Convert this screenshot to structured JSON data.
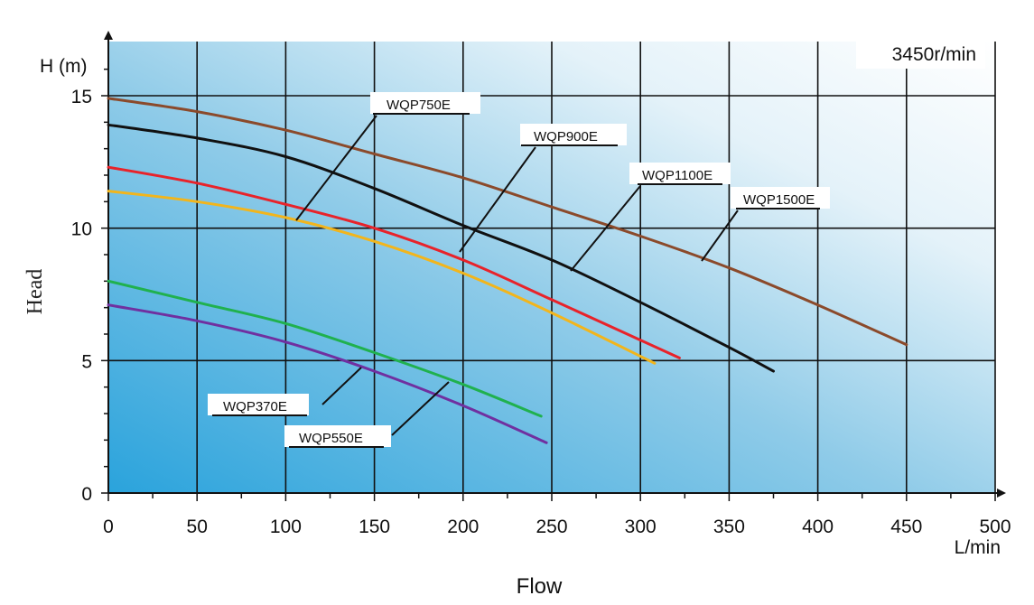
{
  "chart_data": {
    "type": "line",
    "annotation": "3450r/min",
    "xlabel": "Flow",
    "ylabel": "Head",
    "x_unit": "L/min",
    "y_unit": "H (m)",
    "xlim": [
      0,
      500
    ],
    "ylim": [
      0,
      17
    ],
    "x_ticks": [
      0,
      50,
      100,
      150,
      200,
      250,
      300,
      350,
      400,
      450,
      500
    ],
    "y_ticks": [
      0,
      5,
      10,
      15
    ],
    "grid": true,
    "series": [
      {
        "name": "WQP370E",
        "color": "#20b14e",
        "x": [
          0,
          50,
          100,
          150,
          200,
          244
        ],
        "y": [
          8.0,
          7.2,
          6.4,
          5.3,
          4.1,
          2.9
        ]
      },
      {
        "name": "WQP550E",
        "color": "#7030a0",
        "x": [
          0,
          50,
          100,
          150,
          200,
          247
        ],
        "y": [
          7.1,
          6.5,
          5.7,
          4.6,
          3.3,
          1.9
        ]
      },
      {
        "name": "WQP750E",
        "color": "#f2b51c",
        "x": [
          0,
          50,
          100,
          150,
          200,
          250,
          308
        ],
        "y": [
          11.4,
          11.0,
          10.4,
          9.5,
          8.3,
          6.8,
          4.9
        ]
      },
      {
        "name": "WQP900E",
        "color": "#e8232a",
        "x": [
          0,
          50,
          100,
          150,
          200,
          250,
          322
        ],
        "y": [
          12.3,
          11.7,
          10.9,
          10.0,
          8.8,
          7.3,
          5.1
        ]
      },
      {
        "name": "WQP1100E",
        "color": "#111111",
        "x": [
          0,
          50,
          100,
          150,
          200,
          250,
          300,
          350,
          375
        ],
        "y": [
          13.9,
          13.4,
          12.7,
          11.5,
          10.1,
          8.8,
          7.2,
          5.5,
          4.6
        ]
      },
      {
        "name": "WQP1500E",
        "color": "#8b4a2b",
        "x": [
          0,
          50,
          100,
          150,
          200,
          250,
          300,
          350,
          400,
          450
        ],
        "y": [
          14.9,
          14.4,
          13.7,
          12.8,
          11.9,
          10.8,
          9.7,
          8.5,
          7.1,
          5.6
        ]
      }
    ]
  }
}
